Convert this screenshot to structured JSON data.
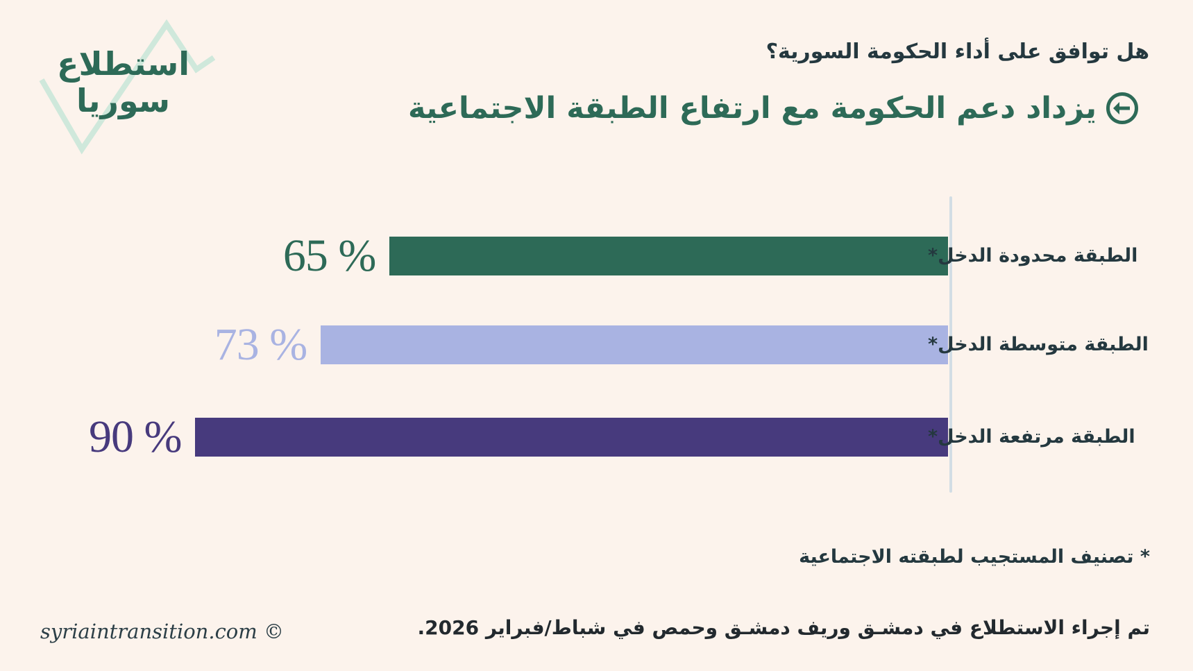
{
  "logo": {
    "line1": "استطلاع",
    "line2": "سوريا"
  },
  "header": {
    "question": "هل توافق على أداء الحكومة السورية؟"
  },
  "chart_data": {
    "type": "bar",
    "orientation": "horizontal",
    "direction": "rtl",
    "title": "يزداد دعم الحكومة مع ارتفاع الطبقة الاجتماعية",
    "categories": [
      "الطبقة محدودة الدخل*",
      "الطبقة متوسطة الدخل*",
      "الطبقة مرتفعة الدخل*"
    ],
    "values": [
      65,
      73,
      90
    ],
    "unit": "%",
    "xlim": [
      0,
      100
    ],
    "bar_colors": [
      "#2d6a57",
      "#a9b3e2",
      "#473a7d"
    ],
    "axis_color": "#d2dde4",
    "grid": false,
    "legend": false
  },
  "footnote": "* تصنيف المستجيب لطبقته الاجتماعية",
  "source_note": "تم إجراء الاستطلاع في دمشـق وريف دمشـق وحمص في شباط/فبراير 2026.",
  "credit": "syriaintransition.com ©",
  "colors": {
    "background": "#fcf3ec",
    "accent_teal": "#2d6a57",
    "text_dark": "#24383f",
    "logo_zigzag": "#cfe8db"
  }
}
